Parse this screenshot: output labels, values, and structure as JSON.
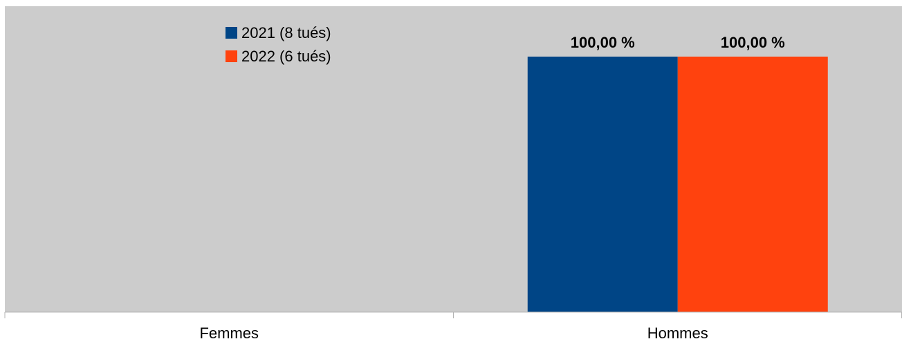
{
  "chart_data": {
    "type": "bar",
    "categories": [
      "Femmes",
      "Hommes"
    ],
    "series": [
      {
        "name": "2021 (8 tués)",
        "color": "#004586",
        "values": [
          0,
          100
        ]
      },
      {
        "name": "2022 (6 tués)",
        "color": "#FF420E",
        "values": [
          0,
          100
        ]
      }
    ],
    "data_labels": [
      [
        null,
        "100,00 %"
      ],
      [
        null,
        "100,00 %"
      ]
    ],
    "ylim": [
      0,
      100
    ],
    "grid": false,
    "legend_placement": "top-left",
    "plot_background": "#cccccc",
    "title": "",
    "xlabel": "",
    "ylabel": ""
  }
}
